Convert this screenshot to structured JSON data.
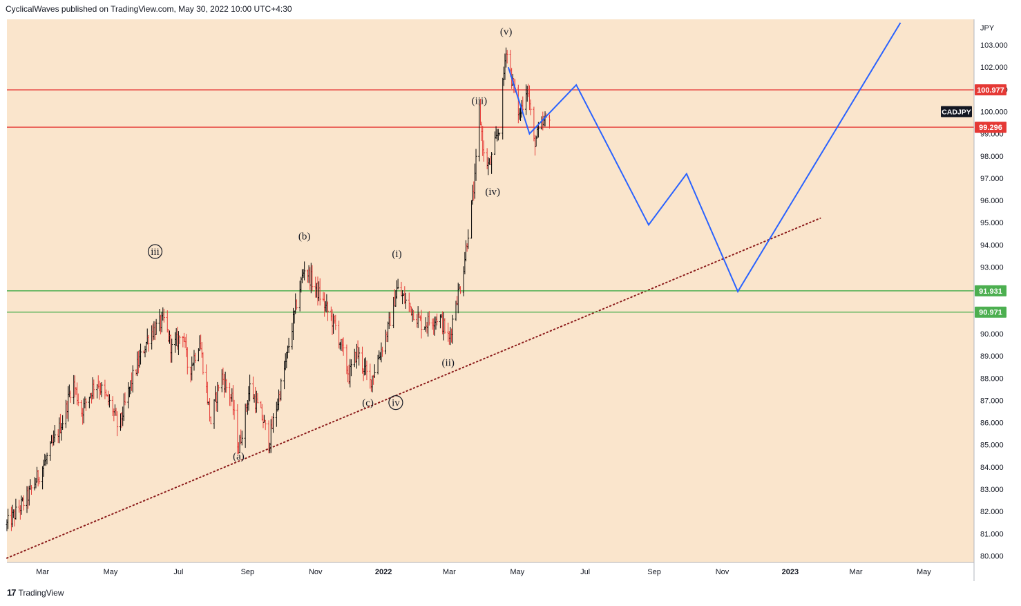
{
  "header": {
    "attribution": "CyclicalWaves published on TradingView.com, May 30, 2022 10:00 UTC+4:30"
  },
  "footer": {
    "brand": "TradingView",
    "logo_icon": "tradingview-logo-icon"
  },
  "chart_data": {
    "type": "candlestick",
    "symbol": "CADJPY",
    "currency": "JPY",
    "background": "#fae5cc",
    "colors": {
      "up": "#000000",
      "down": "#e53935",
      "projection": "#2962ff",
      "trendline": "#8b1a1a",
      "resistance": "#e53935",
      "support": "#4caf50"
    },
    "ylim": [
      79.8,
      103.7
    ],
    "y_ticks": [
      80,
      81,
      82,
      83,
      84,
      85,
      86,
      87,
      88,
      89,
      90,
      91,
      92,
      93,
      94,
      95,
      96,
      97,
      98,
      99,
      100,
      101,
      102,
      103
    ],
    "y_tick_labels": [
      "80.000",
      "81.000",
      "82.000",
      "83.000",
      "84.000",
      "85.000",
      "86.000",
      "87.000",
      "88.000",
      "89.000",
      "90.000",
      "91.000",
      "92.000",
      "93.000",
      "94.000",
      "95.000",
      "96.000",
      "97.000",
      "98.000",
      "99.000",
      "100.000",
      "101.000",
      "102.000",
      "103.000"
    ],
    "x_range": [
      "2021-01-28",
      "2023-06-15"
    ],
    "x_ticks": [
      {
        "label": "Mar",
        "date": "2021-03-01"
      },
      {
        "label": "May",
        "date": "2021-05-01"
      },
      {
        "label": "Jul",
        "date": "2021-07-01"
      },
      {
        "label": "Sep",
        "date": "2021-09-01"
      },
      {
        "label": "Nov",
        "date": "2021-11-01"
      },
      {
        "label": "2022",
        "date": "2022-01-01"
      },
      {
        "label": "Mar",
        "date": "2022-03-01"
      },
      {
        "label": "May",
        "date": "2022-05-01"
      },
      {
        "label": "Jul",
        "date": "2022-07-01"
      },
      {
        "label": "Sep",
        "date": "2022-09-01"
      },
      {
        "label": "Nov",
        "date": "2022-11-01"
      },
      {
        "label": "2023",
        "date": "2023-01-01"
      },
      {
        "label": "Mar",
        "date": "2023-03-01"
      },
      {
        "label": "May",
        "date": "2023-05-01"
      }
    ],
    "price_path": [
      [
        "2021-01-28",
        81.4
      ],
      [
        "2021-02-15",
        82.6
      ],
      [
        "2021-03-05",
        84.4
      ],
      [
        "2021-03-20",
        86.2
      ],
      [
        "2021-03-28",
        87.9
      ],
      [
        "2021-04-05",
        86.5
      ],
      [
        "2021-04-18",
        87.9
      ],
      [
        "2021-05-03",
        86.6
      ],
      [
        "2021-05-08",
        85.7
      ],
      [
        "2021-05-20",
        87.9
      ],
      [
        "2021-06-05",
        90.0
      ],
      [
        "2021-06-18",
        90.6
      ],
      [
        "2021-06-25",
        89.3
      ],
      [
        "2021-07-05",
        90.1
      ],
      [
        "2021-07-10",
        88.2
      ],
      [
        "2021-07-20",
        89.7
      ],
      [
        "2021-07-30",
        86.0
      ],
      [
        "2021-08-08",
        88.2
      ],
      [
        "2021-08-18",
        87.0
      ],
      [
        "2021-08-24",
        84.8
      ],
      [
        "2021-09-03",
        87.6
      ],
      [
        "2021-09-15",
        86.1
      ],
      [
        "2021-09-20",
        85.1
      ],
      [
        "2021-10-03",
        88.1
      ],
      [
        "2021-10-15",
        91.4
      ],
      [
        "2021-10-22",
        93.0
      ],
      [
        "2021-11-05",
        91.7
      ],
      [
        "2021-11-20",
        90.2
      ],
      [
        "2021-12-01",
        88.1
      ],
      [
        "2021-12-08",
        89.2
      ],
      [
        "2021-12-20",
        87.8
      ],
      [
        "2022-01-05",
        90.2
      ],
      [
        "2022-01-13",
        92.0
      ],
      [
        "2022-01-25",
        91.2
      ],
      [
        "2022-02-05",
        90.4
      ],
      [
        "2022-02-20",
        90.8
      ],
      [
        "2022-03-01",
        89.7
      ],
      [
        "2022-03-07",
        91.5
      ],
      [
        "2022-03-12",
        92.3
      ],
      [
        "2022-03-18",
        94.6
      ],
      [
        "2022-03-24",
        96.9
      ],
      [
        "2022-03-28",
        100.1
      ],
      [
        "2022-04-01",
        98.0
      ],
      [
        "2022-04-06",
        97.5
      ],
      [
        "2022-04-15",
        99.3
      ],
      [
        "2022-04-21",
        102.9
      ],
      [
        "2022-04-26",
        101.5
      ],
      [
        "2022-05-03",
        99.8
      ],
      [
        "2022-05-10",
        101.2
      ],
      [
        "2022-05-16",
        98.6
      ],
      [
        "2022-05-23",
        99.3
      ],
      [
        "2022-05-30",
        99.9
      ]
    ],
    "resistance_levels": [
      100.977,
      99.296
    ],
    "resistance_labels": [
      "100.977",
      "99.296"
    ],
    "support_levels": [
      91.931,
      90.971
    ],
    "support_labels": [
      "91.931",
      "90.971"
    ],
    "trendline": [
      [
        "2021-01-28",
        79.9
      ],
      [
        "2023-01-28",
        95.2
      ]
    ],
    "projection_path": [
      [
        "2022-04-23",
        102.0
      ],
      [
        "2022-05-12",
        99.0
      ],
      [
        "2022-06-23",
        101.2
      ],
      [
        "2022-08-27",
        94.9
      ],
      [
        "2022-09-30",
        97.2
      ],
      [
        "2022-11-15",
        91.9
      ],
      [
        "2023-04-10",
        104.0
      ]
    ],
    "wave_labels": [
      {
        "text": "iii",
        "date": "2021-06-10",
        "price": 93.7,
        "circled": true
      },
      {
        "text": "(a)",
        "date": "2021-08-24",
        "price": 84.5
      },
      {
        "text": "(b)",
        "date": "2021-10-22",
        "price": 94.4
      },
      {
        "text": "(c)",
        "date": "2021-12-18",
        "price": 86.9
      },
      {
        "text": "iv",
        "date": "2022-01-12",
        "price": 86.9,
        "circled": true
      },
      {
        "text": "(i)",
        "date": "2022-01-13",
        "price": 93.6
      },
      {
        "text": "(ii)",
        "date": "2022-02-28",
        "price": 88.7
      },
      {
        "text": "(iii)",
        "date": "2022-03-28",
        "price": 100.5
      },
      {
        "text": "(iv)",
        "date": "2022-04-09",
        "price": 96.4
      },
      {
        "text": "(v)",
        "date": "2022-04-21",
        "price": 103.6
      }
    ]
  }
}
